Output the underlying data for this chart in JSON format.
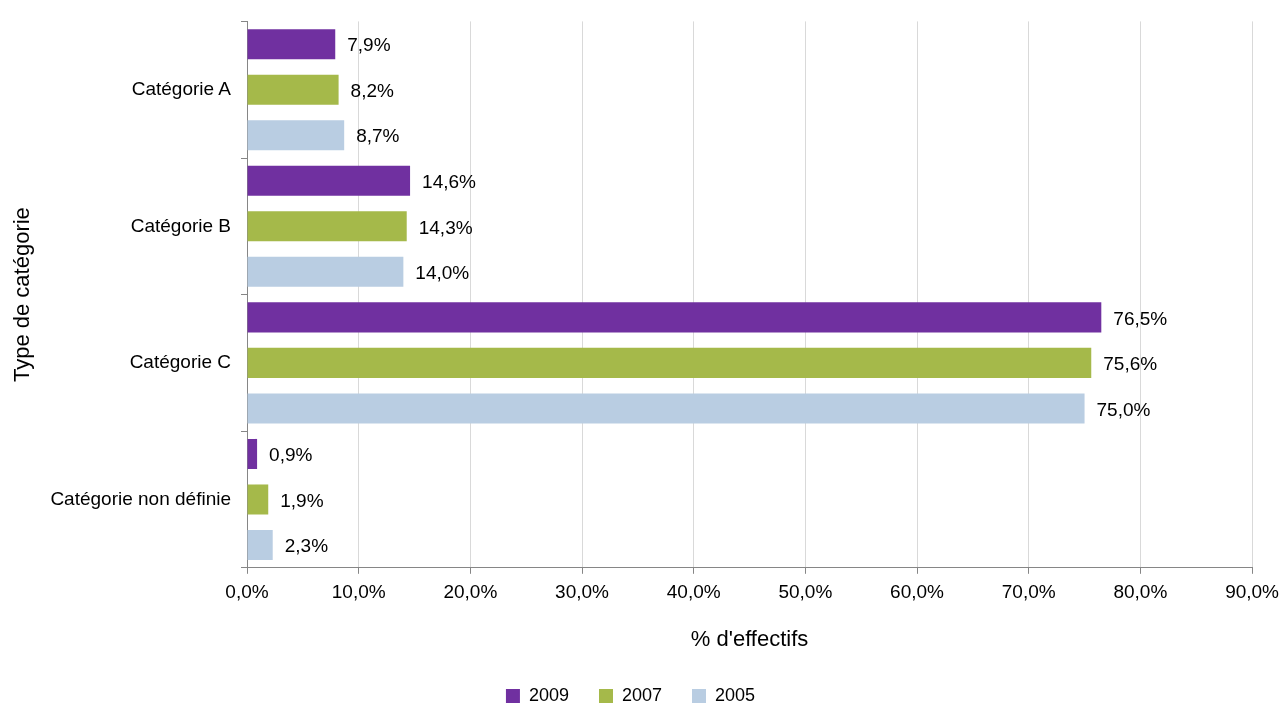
{
  "chart_data": {
    "type": "bar",
    "orientation": "horizontal",
    "xlabel": "% d'effectifs",
    "ylabel": "Type de catégorie",
    "categories": [
      "Catégorie A",
      "Catégorie B",
      "Catégorie C",
      "Catégorie non définie"
    ],
    "series": [
      {
        "name": "2009",
        "color": "#7030a0",
        "values": [
          7.9,
          14.6,
          76.5,
          0.9
        ],
        "value_labels": [
          "7,9%",
          "14,6%",
          "76,5%",
          "0,9%"
        ]
      },
      {
        "name": "2007",
        "color": "#a5b94a",
        "values": [
          8.2,
          14.3,
          75.6,
          1.9
        ],
        "value_labels": [
          "8,2%",
          "14,3%",
          "75,6%",
          "1,9%"
        ]
      },
      {
        "name": "2005",
        "color": "#b9cde2",
        "values": [
          8.7,
          14.0,
          75.0,
          2.3
        ],
        "value_labels": [
          "8,7%",
          "14,0%",
          "75,0%",
          "2,3%"
        ]
      }
    ],
    "xlim": [
      0,
      90
    ],
    "xticks": [
      {
        "value": 0,
        "label": "0,0%"
      },
      {
        "value": 10,
        "label": "10,0%"
      },
      {
        "value": 20,
        "label": "20,0%"
      },
      {
        "value": 30,
        "label": "30,0%"
      },
      {
        "value": 40,
        "label": "40,0%"
      },
      {
        "value": 50,
        "label": "50,0%"
      },
      {
        "value": 60,
        "label": "60,0%"
      },
      {
        "value": 70,
        "label": "70,0%"
      },
      {
        "value": 80,
        "label": "80,0%"
      },
      {
        "value": 90,
        "label": "90,0%"
      }
    ],
    "grid": "x",
    "legend": "bottom"
  }
}
